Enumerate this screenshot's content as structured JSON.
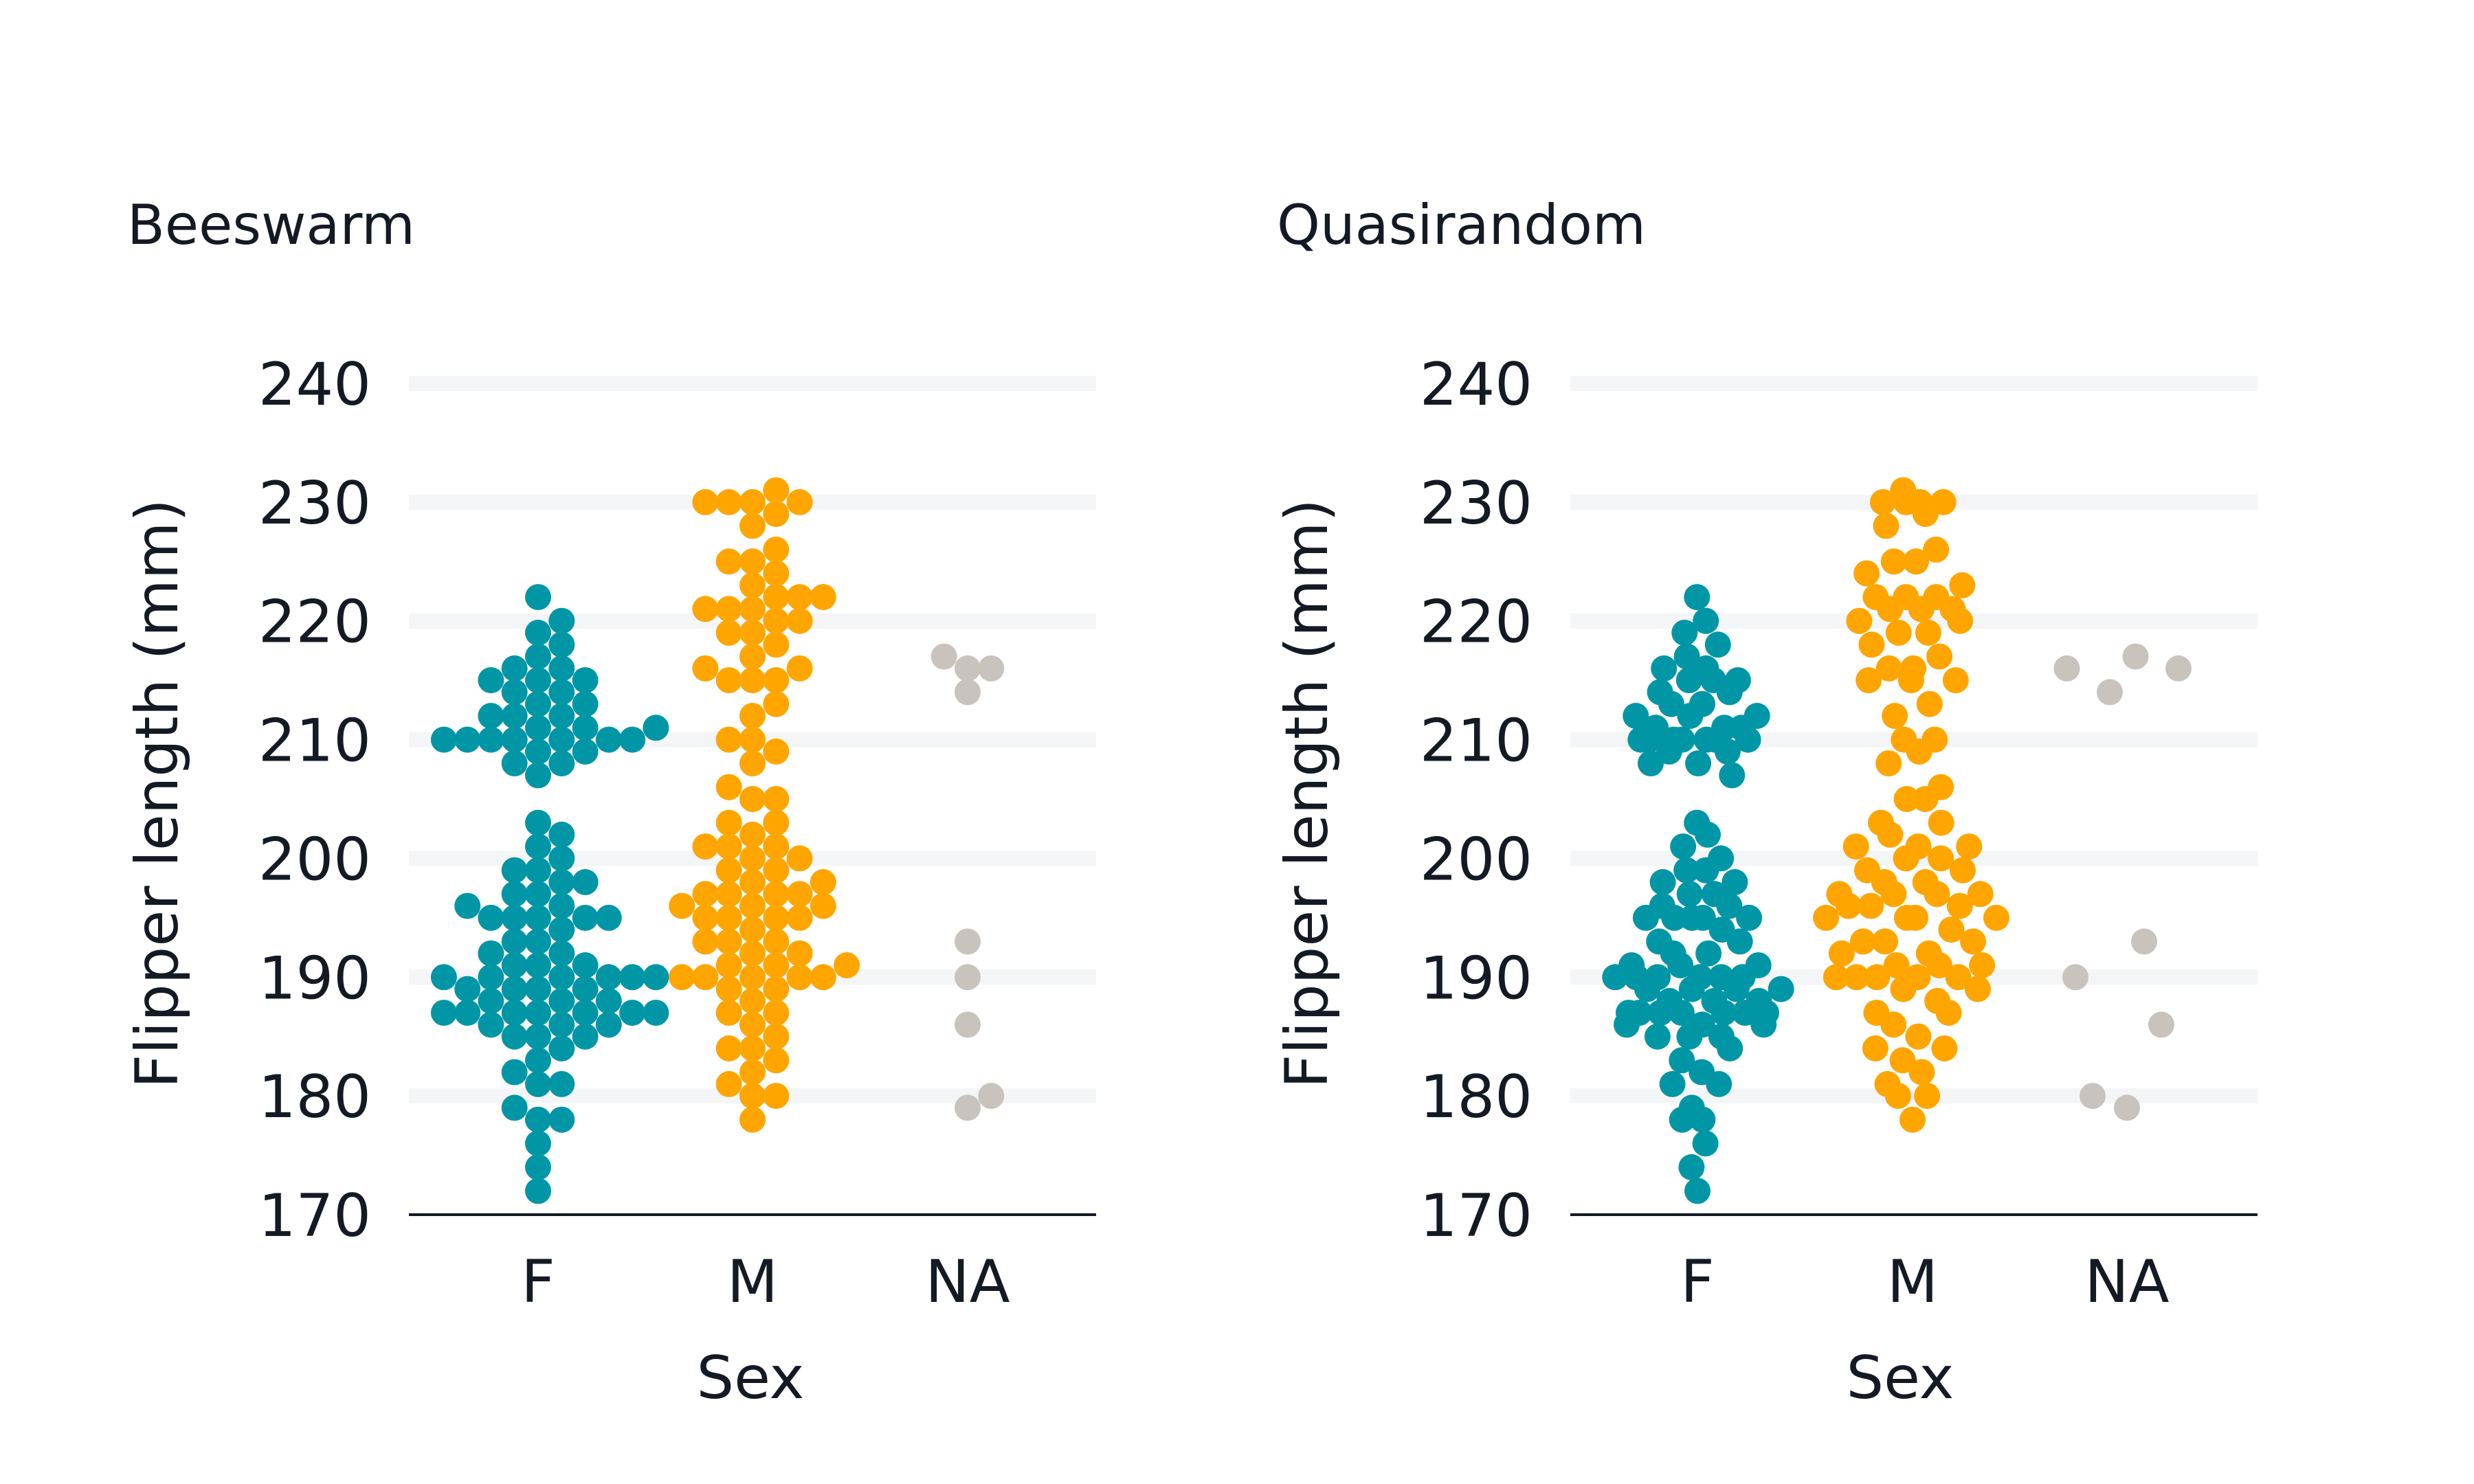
{
  "chart_data": [
    {
      "type": "scatter",
      "subtype": "beeswarm",
      "title": "Beeswarm",
      "xlabel": "Sex",
      "ylabel": "Flipper length (mm)",
      "categories": [
        "F",
        "M",
        "NA"
      ],
      "yticks": [
        170,
        180,
        190,
        200,
        210,
        220,
        230,
        240
      ],
      "ylim": [
        170,
        240
      ],
      "grid": "horizontal",
      "legend": "none",
      "colors": {
        "F": "#0096a6",
        "M": "#ffa500",
        "NA": "#c9c3bd"
      },
      "series": [
        {
          "category": "F",
          "values": [
            172,
            174,
            176,
            178,
            178,
            179,
            181,
            181,
            182,
            183,
            184,
            185,
            185,
            185,
            186,
            186,
            186,
            187,
            187,
            187,
            187,
            187,
            187,
            187,
            188,
            188,
            188,
            189,
            189,
            189,
            189,
            190,
            190,
            190,
            190,
            190,
            190,
            191,
            191,
            191,
            192,
            192,
            193,
            193,
            194,
            195,
            195,
            195,
            195,
            195,
            196,
            196,
            197,
            197,
            198,
            198,
            199,
            199,
            200,
            201,
            202,
            203,
            207,
            208,
            208,
            209,
            209,
            210,
            210,
            210,
            210,
            210,
            210,
            210,
            211,
            211,
            211,
            212,
            212,
            212,
            213,
            213,
            214,
            214,
            215,
            215,
            215,
            216,
            216,
            217,
            218,
            219,
            220,
            222
          ]
        },
        {
          "category": "M",
          "values": [
            178,
            180,
            180,
            181,
            182,
            183,
            184,
            184,
            185,
            186,
            187,
            187,
            188,
            189,
            189,
            190,
            190,
            190,
            190,
            190,
            191,
            191,
            191,
            192,
            192,
            193,
            193,
            193,
            194,
            195,
            195,
            195,
            195,
            196,
            196,
            196,
            197,
            197,
            197,
            197,
            198,
            198,
            199,
            199,
            200,
            200,
            201,
            201,
            201,
            202,
            203,
            203,
            205,
            205,
            206,
            208,
            209,
            210,
            210,
            212,
            213,
            215,
            215,
            215,
            216,
            216,
            217,
            218,
            219,
            219,
            220,
            220,
            221,
            221,
            221,
            222,
            222,
            222,
            223,
            224,
            225,
            225,
            226,
            228,
            229,
            230,
            230,
            230,
            230,
            231
          ]
        },
        {
          "category": "NA",
          "values": [
            179,
            180,
            186,
            190,
            193,
            214,
            216,
            216,
            217
          ]
        }
      ]
    },
    {
      "type": "scatter",
      "subtype": "quasirandom",
      "title": "Quasirandom",
      "xlabel": "Sex",
      "ylabel": "Flipper length (mm)",
      "categories": [
        "F",
        "M",
        "NA"
      ],
      "yticks": [
        170,
        180,
        190,
        200,
        210,
        220,
        230,
        240
      ],
      "ylim": [
        170,
        240
      ],
      "grid": "horizontal",
      "legend": "none",
      "colors": {
        "F": "#0096a6",
        "M": "#ffa500",
        "NA": "#c9c3bd"
      },
      "series": [
        {
          "category": "F",
          "values": [
            172,
            174,
            176,
            178,
            178,
            179,
            181,
            181,
            182,
            183,
            184,
            185,
            185,
            185,
            186,
            186,
            186,
            187,
            187,
            187,
            187,
            187,
            187,
            187,
            188,
            188,
            188,
            189,
            189,
            189,
            189,
            190,
            190,
            190,
            190,
            190,
            190,
            191,
            191,
            191,
            192,
            192,
            193,
            193,
            194,
            195,
            195,
            195,
            195,
            195,
            196,
            196,
            197,
            197,
            198,
            198,
            199,
            199,
            200,
            201,
            202,
            203,
            207,
            208,
            208,
            209,
            209,
            210,
            210,
            210,
            210,
            210,
            210,
            210,
            211,
            211,
            211,
            212,
            212,
            212,
            213,
            213,
            214,
            214,
            215,
            215,
            215,
            216,
            216,
            217,
            218,
            219,
            220,
            222
          ]
        },
        {
          "category": "M",
          "values": [
            178,
            180,
            180,
            181,
            182,
            183,
            184,
            184,
            185,
            186,
            187,
            187,
            188,
            189,
            189,
            190,
            190,
            190,
            190,
            190,
            191,
            191,
            191,
            192,
            192,
            193,
            193,
            193,
            194,
            195,
            195,
            195,
            195,
            196,
            196,
            196,
            197,
            197,
            197,
            197,
            198,
            198,
            199,
            199,
            200,
            200,
            201,
            201,
            201,
            202,
            203,
            203,
            205,
            205,
            206,
            208,
            209,
            210,
            210,
            212,
            213,
            215,
            215,
            215,
            216,
            216,
            217,
            218,
            219,
            219,
            220,
            220,
            221,
            221,
            221,
            222,
            222,
            222,
            223,
            224,
            225,
            225,
            226,
            228,
            229,
            230,
            230,
            230,
            230,
            231
          ]
        },
        {
          "category": "NA",
          "values": [
            179,
            180,
            186,
            190,
            193,
            214,
            216,
            216,
            217
          ]
        }
      ]
    }
  ]
}
